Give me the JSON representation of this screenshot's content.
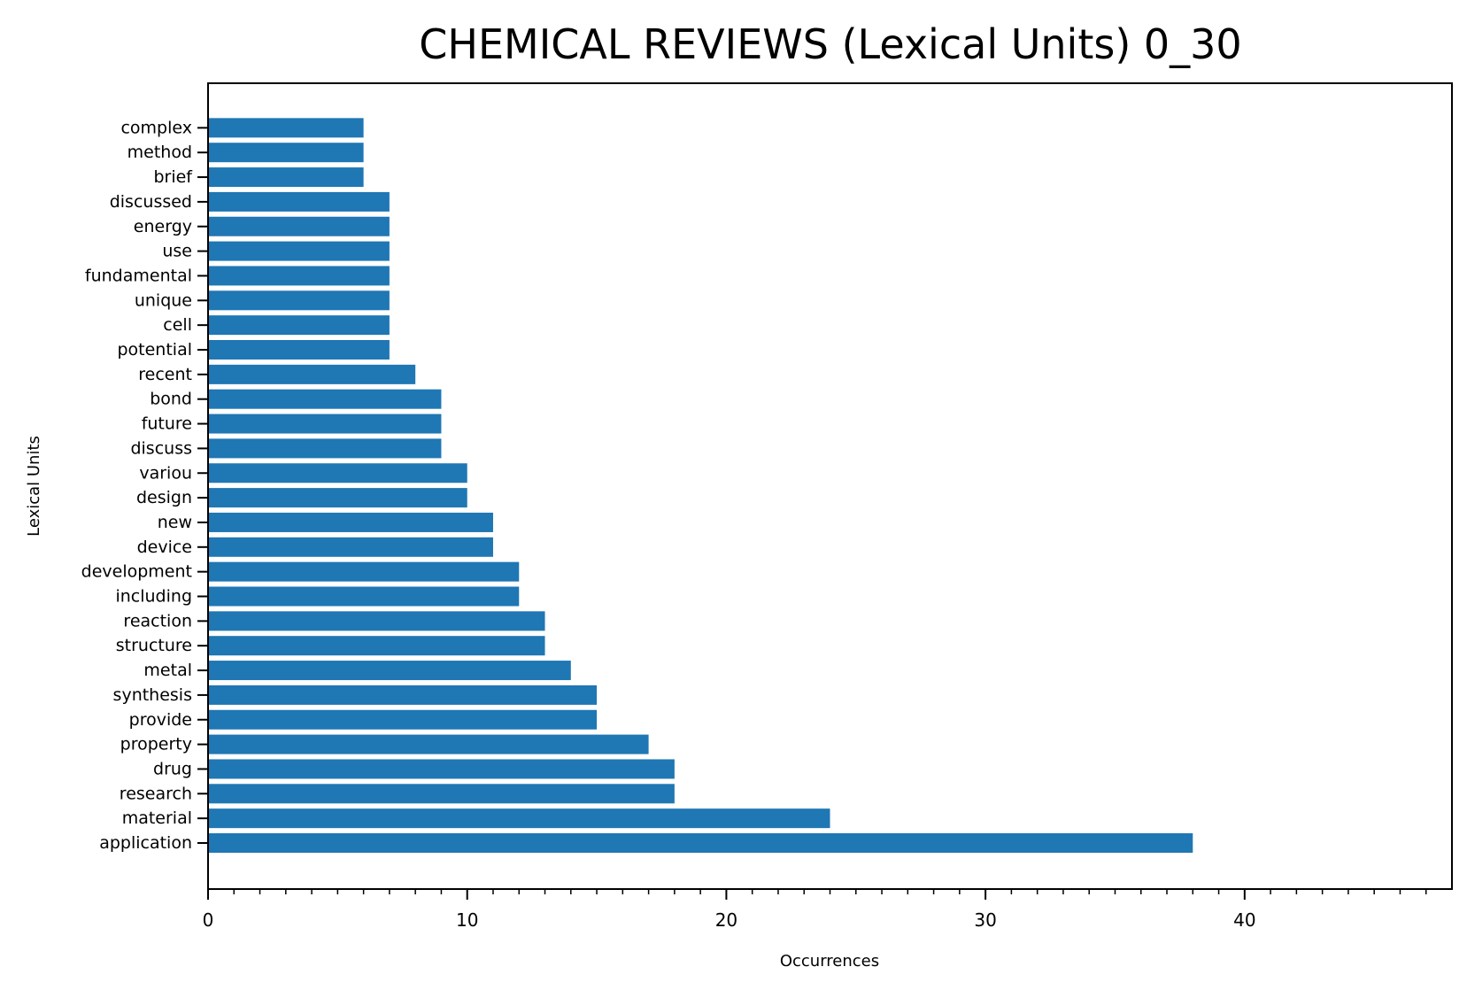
{
  "chart_data": {
    "type": "bar",
    "orientation": "horizontal",
    "title": "CHEMICAL REVIEWS (Lexical Units) 0_30",
    "xlabel": "Occurrences",
    "ylabel": "Lexical Units",
    "xlim": [
      0,
      48
    ],
    "xticks": [
      0,
      10,
      20,
      30,
      40
    ],
    "grid": false,
    "bar_color": "#1f77b4",
    "categories": [
      "application",
      "material",
      "research",
      "drug",
      "property",
      "provide",
      "synthesis",
      "metal",
      "structure",
      "reaction",
      "including",
      "development",
      "device",
      "new",
      "design",
      "variou",
      "discuss",
      "future",
      "bond",
      "recent",
      "potential",
      "cell",
      "unique",
      "fundamental",
      "use",
      "energy",
      "discussed",
      "brief",
      "method",
      "complex"
    ],
    "values": [
      38,
      24,
      18,
      18,
      17,
      15,
      15,
      14,
      13,
      13,
      12,
      12,
      11,
      11,
      10,
      10,
      9,
      9,
      9,
      8,
      7,
      7,
      7,
      7,
      7,
      7,
      7,
      6,
      6,
      6
    ]
  }
}
